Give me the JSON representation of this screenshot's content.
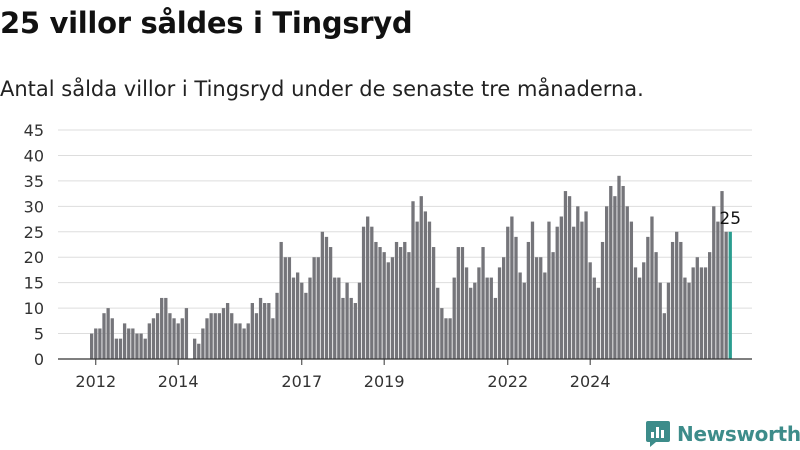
{
  "header": {
    "title": "25 villor såldes i Tingsryd",
    "subtitle": "Antal sålda villor i Tingsryd under de senaste tre månaderna."
  },
  "brand": {
    "name": "Newsworthy"
  },
  "colors": {
    "bar": "#75757a",
    "highlight": "#2a9d8f",
    "grid": "#dddddd",
    "brand": "#3d8c8a"
  },
  "chart_data": {
    "type": "bar",
    "title": "25 villor såldes i Tingsryd",
    "subtitle": "Antal sålda villor i Tingsryd under de senaste tre månaderna.",
    "xlabel": "",
    "ylabel": "",
    "ylim": [
      0,
      45
    ],
    "yticks": [
      0,
      5,
      10,
      15,
      20,
      25,
      30,
      35,
      40,
      45
    ],
    "xtick_labels": [
      "2012",
      "2014",
      "2017",
      "2019",
      "2022",
      "2024"
    ],
    "xtick_positions": [
      1,
      21,
      51,
      71,
      101,
      121
    ],
    "grid": true,
    "highlight_label": "25",
    "values": [
      5,
      6,
      6,
      9,
      10,
      8,
      4,
      4,
      7,
      6,
      6,
      5,
      5,
      4,
      7,
      8,
      9,
      12,
      12,
      9,
      8,
      7,
      8,
      10,
      0,
      4,
      3,
      6,
      8,
      9,
      9,
      9,
      10,
      11,
      9,
      7,
      7,
      6,
      7,
      11,
      9,
      12,
      11,
      11,
      8,
      13,
      23,
      20,
      20,
      16,
      17,
      15,
      13,
      16,
      20,
      20,
      25,
      24,
      22,
      16,
      16,
      12,
      15,
      12,
      11,
      15,
      26,
      28,
      26,
      23,
      22,
      21,
      19,
      20,
      23,
      22,
      23,
      21,
      31,
      27,
      32,
      29,
      27,
      22,
      14,
      10,
      8,
      8,
      16,
      22,
      22,
      18,
      14,
      15,
      18,
      22,
      16,
      16,
      12,
      18,
      20,
      26,
      28,
      24,
      17,
      15,
      23,
      27,
      20,
      20,
      17,
      27,
      21,
      26,
      28,
      33,
      32,
      26,
      30,
      27,
      29,
      19,
      16,
      14,
      23,
      30,
      34,
      32,
      36,
      34,
      30,
      27,
      18,
      16,
      19,
      24,
      28,
      21,
      15,
      9,
      15,
      23,
      25,
      23,
      16,
      15,
      18,
      20,
      18,
      18,
      21,
      30,
      27,
      33,
      25,
      25
    ],
    "highlight_index": 155
  }
}
